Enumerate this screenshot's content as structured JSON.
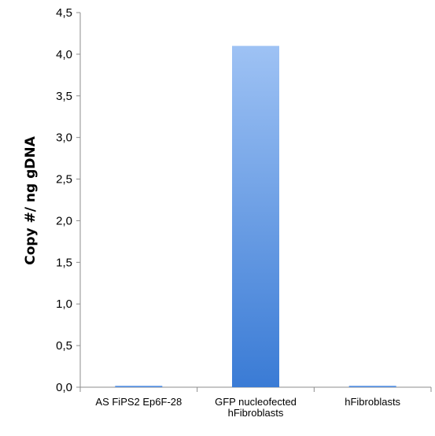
{
  "chart_data": {
    "type": "bar",
    "title": "",
    "xlabel": "",
    "ylabel": "Copy #/ ng gDNA",
    "ylim": [
      0,
      4.5
    ],
    "yticks": [
      "0,0",
      "0,5",
      "1,0",
      "1,5",
      "2,0",
      "2,5",
      "3,0",
      "3,5",
      "4,0",
      "4,5"
    ],
    "categories": [
      [
        "AS FiPS2 Ep6F-28"
      ],
      [
        "GFP nucleofected",
        "hFibroblasts"
      ],
      [
        "hFibroblasts"
      ]
    ],
    "values": [
      0.01,
      4.1,
      0.01
    ],
    "grid": false,
    "legend": "none",
    "colors": {
      "bar_top": "#9ec2f4",
      "bar_bottom": "#3a7bd5",
      "axis": "#8c8c8c",
      "text": "#000000"
    }
  }
}
